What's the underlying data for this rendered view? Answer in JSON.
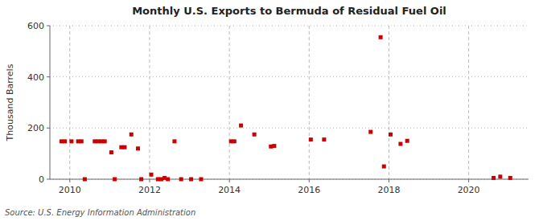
{
  "chart_data": {
    "type": "scatter",
    "title": "Monthly U.S. Exports to Bermuda of Residual Fuel Oil",
    "ylabel": "Thousand Barrels",
    "source": "Source: U.S. Energy Information Administration",
    "color": "#cc0000",
    "marker": "square",
    "grid": true,
    "xlim": [
      2009.5,
      2021.5
    ],
    "ylim": [
      0,
      600
    ],
    "xticks": [
      2010,
      2012,
      2014,
      2016,
      2018,
      2020
    ],
    "yticks": [
      0,
      200,
      400,
      600
    ],
    "x": [
      2009.7916666666667,
      2009.875,
      2010.0416666666667,
      2010.2083333333333,
      2010.2916666666667,
      2010.375,
      2010.625,
      2010.7083333333333,
      2010.7916666666667,
      2010.875,
      2011.0416666666667,
      2011.125,
      2011.2916666666667,
      2011.375,
      2011.5416666666667,
      2011.7083333333333,
      2011.7916666666667,
      2012.0416666666667,
      2012.2083333333333,
      2012.2916666666667,
      2012.375,
      2012.4583333333333,
      2012.625,
      2012.7916666666667,
      2013.0416666666667,
      2013.2916666666667,
      2014.0416666666667,
      2014.125,
      2014.2916666666667,
      2014.625,
      2015.0416666666667,
      2015.125,
      2016.0416666666667,
      2016.375,
      2017.5416666666667,
      2017.7916666666667,
      2017.875,
      2018.0416666666667,
      2018.2916666666667,
      2018.4583333333333,
      2020.625,
      2020.7916666666667,
      2021.0416666666667
    ],
    "values": [
      148,
      148,
      148,
      148,
      148,
      0,
      148,
      148,
      148,
      148,
      105,
      0,
      125,
      125,
      175,
      120,
      0,
      18,
      0,
      0,
      5,
      0,
      148,
      0,
      0,
      0,
      148,
      148,
      210,
      175,
      128,
      130,
      155,
      155,
      185,
      555,
      50,
      175,
      138,
      150,
      5,
      10,
      5
    ]
  }
}
